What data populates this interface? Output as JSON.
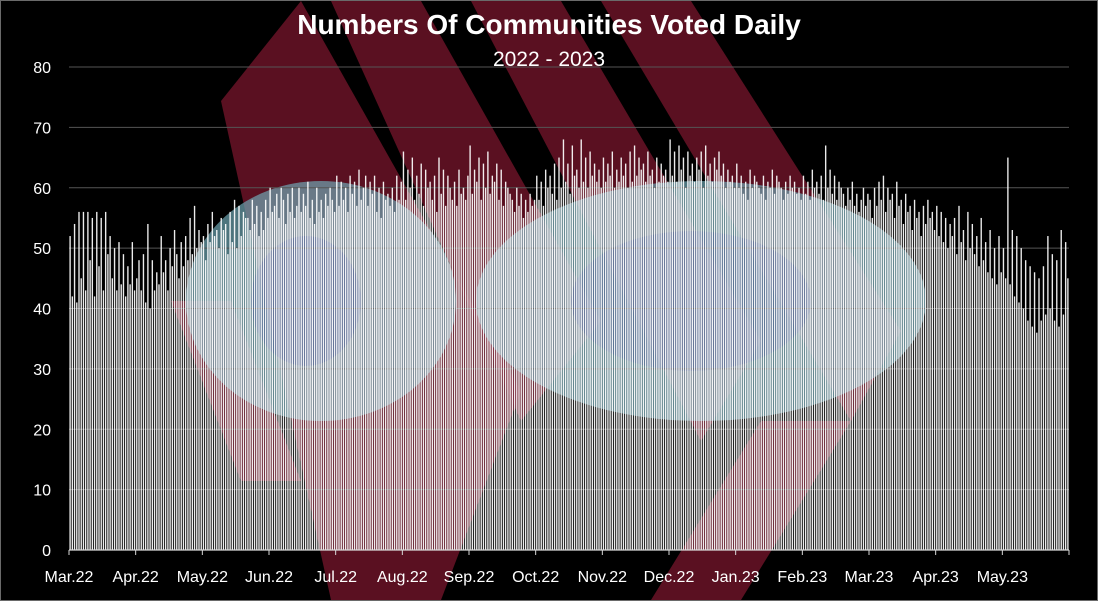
{
  "chart_data": {
    "type": "bar",
    "title": "Numbers Of Communities Voted Daily",
    "subtitle": "2022 - 2023",
    "xlabel": "",
    "ylabel": "",
    "ylim": [
      0,
      80
    ],
    "yticks": [
      "0",
      "10",
      "20",
      "30",
      "40",
      "50",
      "60",
      "70",
      "80"
    ],
    "grid": true,
    "legend": "none",
    "bar_color": "#ffffff",
    "gridline_color": "#555555",
    "background_color": "#000000",
    "watermark_color": "#7a1830",
    "month_labels": [
      "Mar.22",
      "Apr.22",
      "May.22",
      "Jun.22",
      "Jul.22",
      "Aug.22",
      "Sep.22",
      "Oct.22",
      "Nov.22",
      "Dec.22",
      "Jan.23",
      "Feb.23",
      "Mar.23",
      "Apr.23",
      "May.23"
    ],
    "series": [
      {
        "values": [
          52,
          42,
          54,
          41,
          56,
          45,
          56,
          43,
          56,
          48,
          55,
          42,
          56,
          47,
          55,
          43,
          56,
          49,
          52,
          45,
          50,
          43,
          51,
          44,
          49,
          42,
          47,
          44,
          51,
          43,
          45,
          48,
          43,
          49,
          41,
          54,
          40,
          48,
          43,
          46,
          44,
          52,
          46,
          48,
          43,
          50,
          47,
          53,
          49,
          45,
          51,
          47,
          52,
          48,
          55,
          49,
          57,
          50,
          53,
          51,
          52,
          48,
          54,
          51,
          56,
          52,
          53,
          50,
          55,
          53,
          54,
          49,
          56,
          51,
          58,
          50,
          57,
          52,
          56,
          55,
          55,
          53,
          58,
          54,
          57,
          52,
          56,
          53,
          58,
          55,
          60,
          56,
          57,
          59,
          55,
          60,
          58,
          54,
          59,
          56,
          60,
          55,
          57,
          60,
          56,
          59,
          57,
          61,
          55,
          58,
          54,
          60,
          56,
          58,
          55,
          59,
          57,
          60,
          58,
          56,
          62,
          57,
          61,
          58,
          60,
          56,
          62,
          59,
          61,
          57,
          63,
          58,
          60,
          62,
          57,
          61,
          59,
          62,
          56,
          60,
          55,
          61,
          58,
          59,
          57,
          60,
          56,
          62,
          58,
          61,
          66,
          58,
          63,
          60,
          65,
          58,
          62,
          59,
          64,
          57,
          63,
          60,
          61,
          58,
          62,
          56,
          65,
          59,
          63,
          57,
          62,
          60,
          58,
          61,
          57,
          63,
          59,
          60,
          58,
          62,
          67,
          59,
          63,
          61,
          65,
          58,
          64,
          60,
          66,
          59,
          62,
          61,
          64,
          58,
          63,
          57,
          61,
          60,
          59,
          58,
          56,
          60,
          57,
          59,
          55,
          58,
          56,
          59,
          57,
          58,
          62,
          58,
          61,
          57,
          63,
          60,
          62,
          59,
          64,
          58,
          65,
          60,
          68,
          61,
          64,
          59,
          67,
          62,
          63,
          60,
          68,
          61,
          65,
          60,
          66,
          62,
          64,
          61,
          63,
          60,
          65,
          61,
          64,
          62,
          66,
          60,
          63,
          61,
          65,
          62,
          64,
          60,
          66,
          61,
          67,
          62,
          65,
          63,
          64,
          61,
          66,
          62,
          63,
          60,
          65,
          61,
          64,
          62,
          63,
          61,
          68,
          62,
          66,
          61,
          67,
          63,
          65,
          60,
          66,
          62,
          64,
          61,
          65,
          63,
          66,
          60,
          67,
          62,
          64,
          61,
          65,
          63,
          66,
          62,
          64,
          60,
          63,
          61,
          62,
          60,
          64,
          60,
          62,
          59,
          61,
          58,
          63,
          60,
          62,
          61,
          60,
          59,
          62,
          58,
          61,
          60,
          63,
          59,
          62,
          61,
          60,
          58,
          61,
          59,
          62,
          60,
          61,
          59,
          60,
          58,
          62,
          59,
          61,
          58,
          63,
          60,
          61,
          59,
          62,
          58,
          67,
          60,
          63,
          59,
          62,
          58,
          61,
          60,
          59,
          57,
          60,
          58,
          61,
          57,
          59,
          56,
          58,
          60,
          57,
          59,
          58,
          55,
          60,
          57,
          61,
          58,
          62,
          56,
          60,
          58,
          59,
          55,
          61,
          57,
          58,
          54,
          59,
          56,
          57,
          53,
          58,
          55,
          56,
          52,
          57,
          54,
          58,
          55,
          56,
          53,
          57,
          52,
          56,
          51,
          55,
          50,
          54,
          52,
          55,
          49,
          57,
          51,
          53,
          48,
          56,
          50,
          54,
          49,
          52,
          47,
          55,
          48,
          51,
          46,
          53,
          45,
          50,
          44,
          52,
          46,
          50,
          45,
          65,
          44,
          53,
          42,
          52,
          41,
          50,
          40,
          48,
          38,
          47,
          37,
          46,
          36,
          45,
          38,
          47,
          39,
          52,
          40,
          49,
          38,
          48,
          37,
          53,
          39,
          51,
          45
        ]
      }
    ]
  }
}
